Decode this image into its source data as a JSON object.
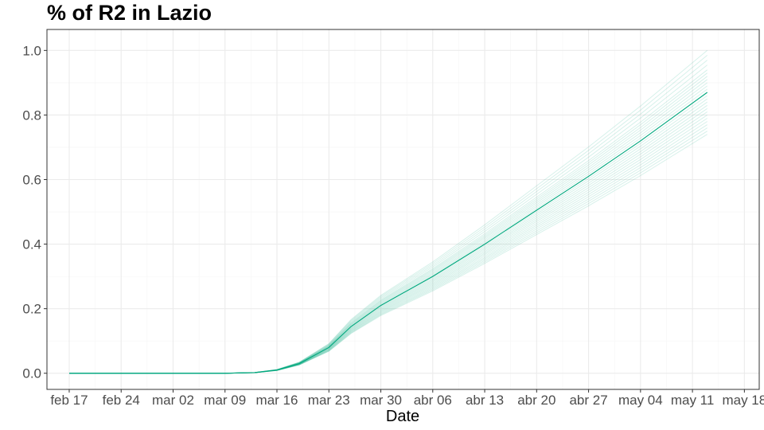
{
  "chart_data": {
    "type": "line",
    "title": "% of R2 in  Lazio",
    "xlabel": "Date",
    "ylabel": "",
    "x_tick_labels": [
      "feb 17",
      "feb 24",
      "mar 02",
      "mar 09",
      "mar 16",
      "mar 23",
      "mar 30",
      "abr 06",
      "abr 13",
      "abr 20",
      "abr 27",
      "may 04",
      "may 11",
      "may 18"
    ],
    "x_tick_dates": [
      "2020-02-17",
      "2020-02-24",
      "2020-03-02",
      "2020-03-09",
      "2020-03-16",
      "2020-03-23",
      "2020-03-30",
      "2020-04-06",
      "2020-04-13",
      "2020-04-20",
      "2020-04-27",
      "2020-05-04",
      "2020-05-11",
      "2020-05-18"
    ],
    "xlim": [
      "2020-02-14",
      "2020-05-20"
    ],
    "y_ticks": [
      0.0,
      0.2,
      0.4,
      0.6,
      0.8,
      1.0
    ],
    "y_tick_labels": [
      "0.0",
      "0.2",
      "0.4",
      "0.6",
      "0.8",
      "1.0"
    ],
    "ylim": [
      -0.05,
      1.065
    ],
    "grid": true,
    "colors": {
      "line": "#00a87e",
      "grid_major": "#ebebeb",
      "grid_minor": "#f5f5f5",
      "border": "#333333"
    },
    "median_series": {
      "x": [
        "2020-02-17",
        "2020-03-09",
        "2020-03-13",
        "2020-03-16",
        "2020-03-19",
        "2020-03-23",
        "2020-03-26",
        "2020-03-30",
        "2020-04-06",
        "2020-04-13",
        "2020-04-20",
        "2020-04-27",
        "2020-05-04",
        "2020-05-13"
      ],
      "values": [
        0.0,
        0.0,
        0.002,
        0.01,
        0.03,
        0.08,
        0.145,
        0.21,
        0.3,
        0.4,
        0.505,
        0.61,
        0.72,
        0.87
      ]
    },
    "ensemble_end_values": [
      0.74,
      0.75,
      0.76,
      0.77,
      0.78,
      0.79,
      0.8,
      0.81,
      0.82,
      0.83,
      0.84,
      0.85,
      0.86,
      0.87,
      0.88,
      0.89,
      0.9,
      0.91,
      0.92,
      0.93,
      0.94,
      0.955,
      0.97,
      0.985,
      1.0
    ]
  }
}
